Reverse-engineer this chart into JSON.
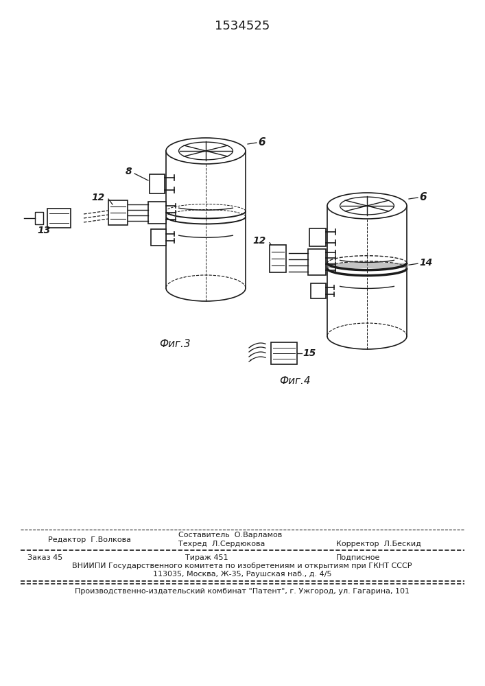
{
  "patent_number": "1534525",
  "fig3_label": "Фиг.3",
  "fig4_label": "Фиг.4",
  "editor_line": "Редактор  Г.Волкова",
  "composer_line": "Составитель  О.Варламов",
  "techred_line": "Техред  Л.Сердюкова",
  "corrector_line": "Корректор  Л.Бескид",
  "order_line": "Заказ 45",
  "tirazh_line": "Тираж 451",
  "podpisnoe_line": "Подписное",
  "vnipi_line1": "ВНИИПИ Государственного комитета по изобретениям и открытиям при ГКНТ СССР",
  "vnipi_line2": "113035, Москва, Ж-35, Раушская наб., д. 4/5",
  "production_line": "Производственно-издательский комбинат \"Патент\", г. Ужгород, ул. Гагарина, 101",
  "bg_color": "#ffffff",
  "line_color": "#1a1a1a"
}
